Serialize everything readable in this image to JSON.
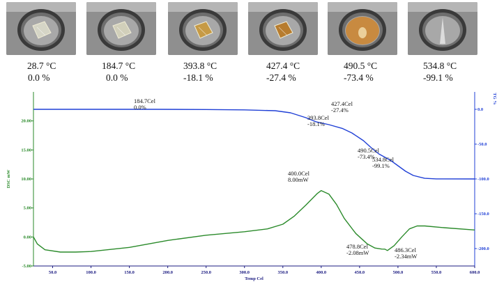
{
  "photos": [
    {
      "temp": "28.7 °C",
      "loss": "0.0 %",
      "sample": "crystal",
      "color": "#d8d8c8"
    },
    {
      "temp": "184.7 °C",
      "loss": "0.0 %",
      "sample": "crystal",
      "color": "#d4d2bc"
    },
    {
      "temp": "393.8 °C",
      "loss": "-18.1 %",
      "sample": "crystal",
      "color": "#c89a40"
    },
    {
      "temp": "427.4 °C",
      "loss": "-27.4 %",
      "sample": "crystal",
      "color": "#b87a28"
    },
    {
      "temp": "490.5 °C",
      "loss": "-73.4 %",
      "sample": "melt",
      "color": "#c88a40"
    },
    {
      "temp": "534.8 °C",
      "loss": "-99.1 %",
      "sample": "empty",
      "color": "#b8b8b8"
    }
  ],
  "chart_data": {
    "type": "line",
    "xlabel": "Temp Cel",
    "ylabel": "DSC mW",
    "y2label": "TG %",
    "xlim": [
      25,
      600
    ],
    "ylim": [
      -5,
      25
    ],
    "y2lim": [
      -225,
      25
    ],
    "x_ticks": [
      50,
      100,
      150,
      200,
      250,
      300,
      350,
      400,
      450,
      500,
      550,
      600
    ],
    "x_tick_labels": [
      "50.0",
      "100.0",
      "150.0",
      "200.0",
      "250.0",
      "300.0",
      "350.0",
      "400.0",
      "450.0",
      "500.0",
      "550.0",
      "600.0"
    ],
    "y_ticks": [
      -5,
      0,
      5,
      10,
      15,
      20
    ],
    "y_tick_labels": [
      "-5.00",
      "0.00",
      "5.00",
      "10.00",
      "15.00",
      "20.00"
    ],
    "y2_ticks": [
      0,
      -50,
      -100,
      -150,
      -200
    ],
    "y2_tick_labels": [
      "0.0",
      "-50.0",
      "-100.0",
      "-150.0",
      "-200.0"
    ],
    "grid": false,
    "series": [
      {
        "axis": "right",
        "color": "#1f3fd6",
        "x": [
          25,
          100,
          184.7,
          250,
          300,
          340,
          360,
          380,
          393.8,
          410,
          427.4,
          440,
          455,
          465,
          475,
          490.5,
          500,
          510,
          520,
          534.8,
          550,
          600
        ],
        "y": [
          0.0,
          0.0,
          0.0,
          -0.3,
          -0.8,
          -2.0,
          -5.0,
          -12.0,
          -18.1,
          -22.0,
          -27.4,
          -34.0,
          -45.0,
          -55.0,
          -64.0,
          -73.4,
          -81.0,
          -89.0,
          -95.0,
          -99.1,
          -99.9,
          -100.0
        ]
      },
      {
        "axis": "left",
        "color": "#2a8a2a",
        "x": [
          25,
          30,
          40,
          60,
          80,
          100,
          150,
          200,
          250,
          300,
          330,
          350,
          365,
          380,
          395,
          400,
          410,
          420,
          430,
          445,
          460,
          470,
          478.8,
          483,
          486.3,
          495,
          505,
          515,
          525,
          535,
          560,
          600
        ],
        "y": [
          0.0,
          -1.2,
          -2.2,
          -2.6,
          -2.6,
          -2.5,
          -1.8,
          -0.6,
          0.3,
          0.9,
          1.4,
          2.2,
          3.6,
          5.5,
          7.5,
          8.0,
          7.4,
          5.6,
          3.2,
          0.6,
          -1.2,
          -1.9,
          -2.08,
          -2.1,
          -2.34,
          -1.5,
          0.0,
          1.4,
          1.9,
          1.9,
          1.6,
          1.2
        ]
      }
    ],
    "annotations": [
      {
        "line1": "184.7Cel",
        "line2": "0.0%"
      },
      {
        "line1": "393.8Cel",
        "line2": "-18.1%"
      },
      {
        "line1": "427.4Cel",
        "line2": "-27.4%"
      },
      {
        "line1": "490.5Cel",
        "line2": "-73.4%"
      },
      {
        "line1": "534.8Cel",
        "line2": "-99.1%"
      },
      {
        "line1": "400.0Cel",
        "line2": "8.00mW"
      },
      {
        "line1": "478.8Cel",
        "line2": "-2.08mW"
      },
      {
        "line1": "486.3Cel",
        "line2": "-2.34mW"
      }
    ]
  }
}
